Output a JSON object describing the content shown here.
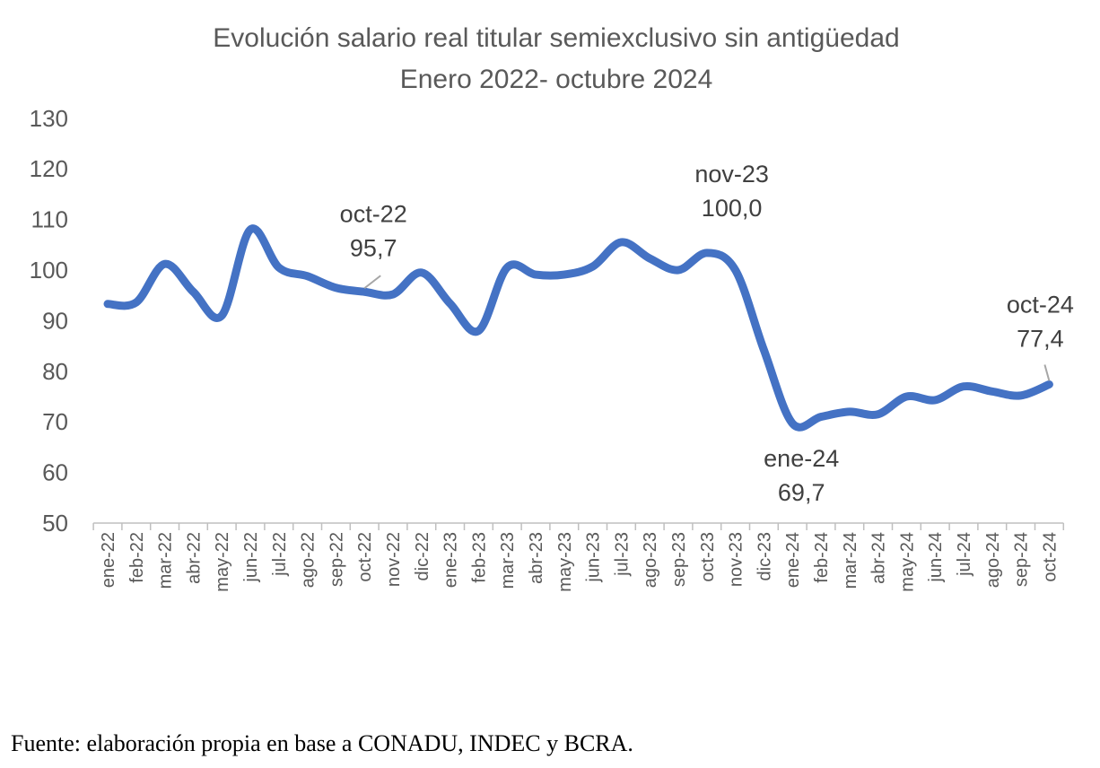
{
  "chart_data": {
    "type": "line",
    "title": "Evolución salario real titular semiexclusivo sin antigüedad",
    "subtitle": "Enero 2022- octubre 2024",
    "xlabel": "",
    "ylabel": "",
    "ylim": [
      50,
      130
    ],
    "yticks": [
      "50",
      "60",
      "70",
      "80",
      "90",
      "100",
      "110",
      "120",
      "130"
    ],
    "grid": false,
    "line_color": "#4472C4",
    "categories": [
      "ene-22",
      "feb-22",
      "mar-22",
      "abr-22",
      "may-22",
      "jun-22",
      "jul-22",
      "ago-22",
      "sep-22",
      "oct-22",
      "nov-22",
      "dic-22",
      "ene-23",
      "feb-23",
      "mar-23",
      "abr-23",
      "may-23",
      "jun-23",
      "jul-23",
      "ago-23",
      "sep-23",
      "oct-23",
      "nov-23",
      "dic-23",
      "ene-24",
      "feb-24",
      "mar-24",
      "abr-24",
      "may-24",
      "jun-24",
      "jul-24",
      "ago-24",
      "sep-24",
      "oct-24"
    ],
    "series": [
      {
        "name": "Salario real",
        "values": [
          93.3,
          93.6,
          101.2,
          95.7,
          91.0,
          108.0,
          100.5,
          98.8,
          96.5,
          95.7,
          95.2,
          99.5,
          93.4,
          88.0,
          100.5,
          99.1,
          99.1,
          100.7,
          105.5,
          102.3,
          100.0,
          103.4,
          100.0,
          84.2,
          69.7,
          71.0,
          72.0,
          71.5,
          75.0,
          74.3,
          77.0,
          76.0,
          75.2,
          77.4
        ]
      }
    ],
    "annotations": [
      {
        "category": "oct-22",
        "label": "oct-22",
        "value": "95,7"
      },
      {
        "category": "nov-23",
        "label": "nov-23",
        "value": "100,0"
      },
      {
        "category": "ene-24",
        "label": "ene-24",
        "value": "69,7"
      },
      {
        "category": "oct-24",
        "label": "oct-24",
        "value": "77,4"
      }
    ]
  },
  "source": "Fuente: elaboración propia en base a CONADU, INDEC y BCRA."
}
